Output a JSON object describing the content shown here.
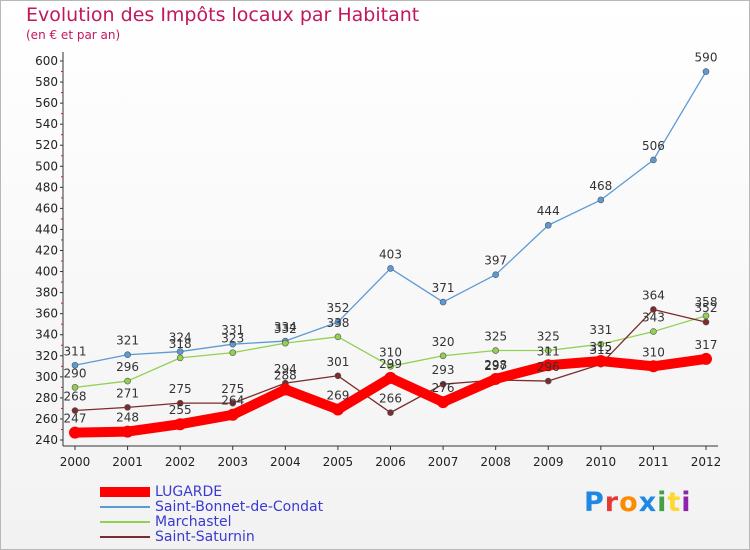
{
  "header": {
    "title": "Evolution des Impôts locaux par Habitant",
    "subtitle": "(en € et par an)"
  },
  "brand": {
    "letters": [
      "P",
      "r",
      "o",
      "x",
      "i",
      "t",
      "i"
    ],
    "colors": [
      "#1e88e5",
      "#e53935",
      "#fb8c00",
      "#1e88e5",
      "#43a047",
      "#fdd835",
      "#8e24aa"
    ]
  },
  "chart_data": {
    "type": "line",
    "x": [
      "2000",
      "2001",
      "2002",
      "2003",
      "2004",
      "2005",
      "2006",
      "2007",
      "2008",
      "2009",
      "2010",
      "2011",
      "2012"
    ],
    "ylim": [
      240,
      600
    ],
    "yticks": [
      "240",
      "260",
      "280",
      "300",
      "320",
      "340",
      "360",
      "380",
      "400",
      "420",
      "440",
      "460",
      "480",
      "500",
      "520",
      "540",
      "560",
      "580",
      "600"
    ],
    "grid": false,
    "legend_position": "bottom-left",
    "series": [
      {
        "name": "LUGARDE",
        "color": "#ff0000",
        "values": [
          247,
          248,
          255,
          264,
          288,
          269,
          299,
          276,
          298,
          311,
          315,
          310,
          317
        ]
      },
      {
        "name": "Saint-Bonnet-de-Condat",
        "color": "#5b9bd5",
        "values": [
          311,
          321,
          324,
          331,
          334,
          352,
          403,
          371,
          397,
          444,
          468,
          506,
          590
        ]
      },
      {
        "name": "Marchastel",
        "color": "#92d050",
        "values": [
          290,
          296,
          318,
          323,
          332,
          338,
          310,
          320,
          325,
          325,
          331,
          343,
          358
        ]
      },
      {
        "name": "Saint-Saturnin",
        "color": "#7b2c2c",
        "values": [
          268,
          271,
          275,
          275,
          294,
          301,
          266,
          293,
          297,
          296,
          312,
          364,
          352
        ]
      }
    ]
  }
}
